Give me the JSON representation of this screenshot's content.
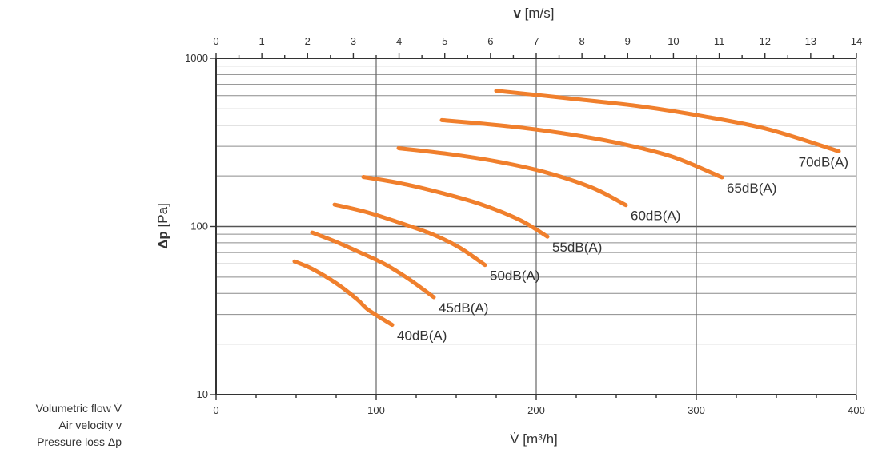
{
  "chart_data": {
    "type": "line",
    "title": "",
    "x_axis_bottom": {
      "label": "V̇ [m³/h]",
      "range": [
        0,
        400
      ],
      "ticks": [
        0,
        100,
        200,
        300,
        400
      ],
      "tick_labels": [
        "0",
        "100",
        "200",
        "300",
        "400"
      ]
    },
    "x_axis_top": {
      "label_symbol": "v",
      "label_unit": " [m/s]",
      "range": [
        0,
        14
      ],
      "ticks": [
        0,
        1,
        2,
        3,
        4,
        5,
        6,
        7,
        8,
        9,
        10,
        11,
        12,
        13,
        14
      ],
      "tick_labels": [
        "0",
        "1",
        "2",
        "3",
        "4",
        "5",
        "6",
        "7",
        "8",
        "9",
        "10",
        "11",
        "12",
        "13",
        "14"
      ]
    },
    "y_axis": {
      "label_symbol": "Δp",
      "label_unit": " [Pa]",
      "scale": "log",
      "range": [
        10,
        1000
      ],
      "tick_labels": [
        "10",
        "100",
        "1000"
      ],
      "tick_values": [
        10,
        100,
        1000
      ]
    },
    "grid": true,
    "series_color": "#f07f2c",
    "series": [
      {
        "name": "40dB(A)",
        "x": [
          49,
          60,
          75,
          88,
          95,
          110
        ],
        "y": [
          62,
          56,
          46,
          37,
          32,
          26
        ]
      },
      {
        "name": "45dB(A)",
        "x": [
          60,
          75,
          90,
          105,
          120,
          136
        ],
        "y": [
          92,
          81,
          70,
          60,
          49,
          38
        ]
      },
      {
        "name": "50dB(A)",
        "x": [
          74,
          95,
          115,
          135,
          152,
          168
        ],
        "y": [
          135,
          121,
          105,
          90,
          75,
          59
        ]
      },
      {
        "name": "55dB(A)",
        "x": [
          92,
          115,
          140,
          165,
          190,
          207
        ],
        "y": [
          197,
          181,
          159,
          136,
          109,
          87
        ]
      },
      {
        "name": "60dB(A)",
        "x": [
          114,
          145,
          175,
          205,
          235,
          256
        ],
        "y": [
          292,
          270,
          244,
          211,
          170,
          134
        ]
      },
      {
        "name": "65dB(A)",
        "x": [
          141,
          180,
          215,
          250,
          285,
          316
        ],
        "y": [
          429,
          397,
          360,
          315,
          260,
          196
        ]
      },
      {
        "name": "70dB(A)",
        "x": [
          175,
          220,
          265,
          305,
          345,
          389
        ],
        "y": [
          641,
          578,
          518,
          451,
          378,
          280
        ]
      }
    ]
  },
  "legend_text": {
    "line1": "Volumetric flow V̇",
    "line2": "Air velocity v",
    "line3": "Pressure loss Δp"
  }
}
